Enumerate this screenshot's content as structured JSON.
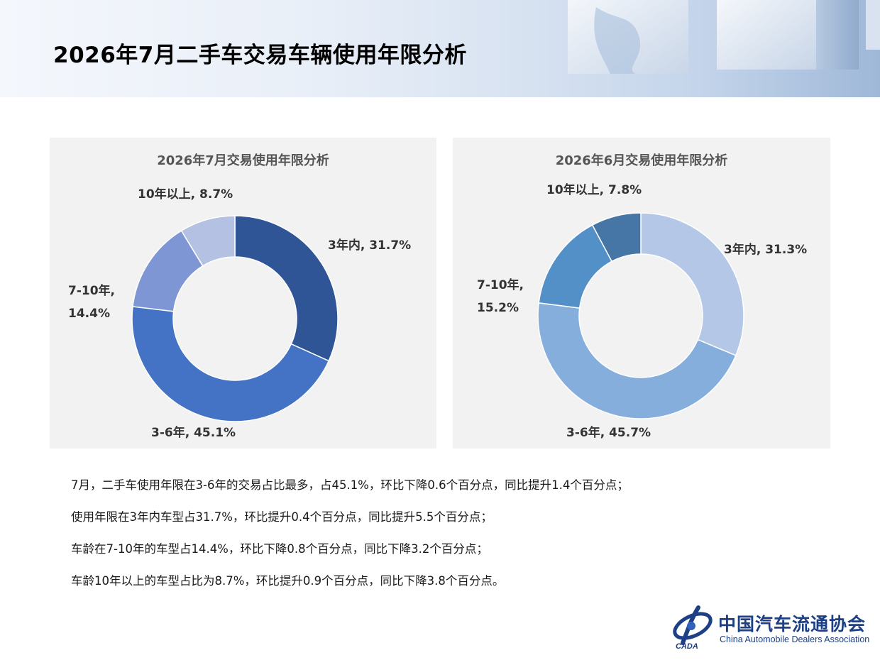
{
  "page": {
    "title": "2026年7月二手车交易车辆使用年限分析"
  },
  "chart_data": [
    {
      "type": "pie",
      "title": "2026年7月交易使用年限分析",
      "categories": [
        "3年内",
        "3-6年",
        "7-10年",
        "10年以上"
      ],
      "values": [
        31.7,
        45.1,
        14.4,
        8.7
      ],
      "unit": "%",
      "labels": [
        "3年内, 31.7%",
        "3-6年, 45.1%",
        "7-10年, 14.4%",
        "10年以上, 8.7%"
      ],
      "label_lines": [
        [
          "3年内, 31.7%"
        ],
        [
          "3-6年, 45.1%"
        ],
        [
          "7-10年,",
          "14.4%"
        ],
        [
          "10年以上, 8.7%"
        ]
      ],
      "colors": [
        "#2f5597",
        "#4472c4",
        "#7f96d4",
        "#b4c1e3"
      ],
      "donut": true,
      "legend": "none"
    },
    {
      "type": "pie",
      "title": "2026年6月交易使用年限分析",
      "categories": [
        "3年内",
        "3-6年",
        "7-10年",
        "10年以上"
      ],
      "values": [
        31.3,
        45.7,
        15.2,
        7.8
      ],
      "unit": "%",
      "labels": [
        "3年内, 31.3%",
        "3-6年, 45.7%",
        "7-10年, 15.2%",
        "10年以上, 7.8%"
      ],
      "label_lines": [
        [
          "3年内, 31.3%"
        ],
        [
          "3-6年, 45.7%"
        ],
        [
          "7-10年,",
          "15.2%"
        ],
        [
          "10年以上, 7.8%"
        ]
      ],
      "colors": [
        "#b4c7e7",
        "#85aedc",
        "#5490c8",
        "#4676a6"
      ],
      "donut": true,
      "legend": "none"
    }
  ],
  "notes": [
    "7月，二手车使用年限在3-6年的交易占比最多，占45.1%，环比下降0.6个百分点，同比提升1.4个百分点；",
    "使用年限在3年内车型占31.7%，环比提升0.4个百分点，同比提升5.5个百分点；",
    "车龄在7-10年的车型占14.4%，环比下降0.8个百分点，同比下降3.2个百分点；",
    "车龄10年以上的车型占比为8.7%，环比提升0.9个百分点，同比下降3.8个百分点。"
  ],
  "logo": {
    "mark_text": "CADA",
    "name_cn": "中国汽车流通协会",
    "name_en": "China Automobile Dealers Association"
  }
}
